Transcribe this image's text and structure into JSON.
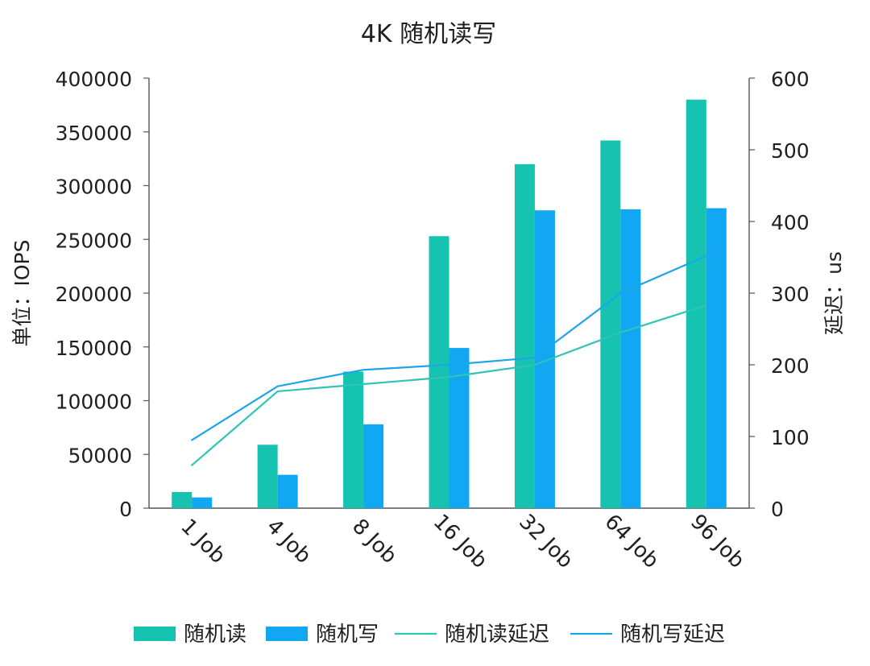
{
  "chart_data": {
    "type": "bar",
    "title": "4K 随机读写",
    "categories": [
      "1 Job",
      "4 Job",
      "8 Job",
      "16 Job",
      "32 Job",
      "64 Job",
      "96 Job"
    ],
    "ylabel": "单位：IOPS",
    "ylabel2": "延迟：us",
    "ylim": [
      0,
      400000
    ],
    "y2lim": [
      0,
      600
    ],
    "yticks": [
      "0",
      "50000",
      "100000",
      "150000",
      "200000",
      "250000",
      "300000",
      "350000",
      "400000"
    ],
    "y2ticks": [
      "0",
      "100",
      "200",
      "300",
      "400",
      "500",
      "600"
    ],
    "legend_position": "bottom",
    "series": [
      {
        "name": "随机读",
        "type": "bar",
        "axis": "left",
        "color": "#15c3b0",
        "values": [
          15000,
          59000,
          127000,
          253000,
          320000,
          342000,
          380000
        ]
      },
      {
        "name": "随机写",
        "type": "bar",
        "axis": "left",
        "color": "#12a7f2",
        "values": [
          10000,
          31000,
          78000,
          149000,
          277000,
          278000,
          279000
        ]
      },
      {
        "name": "随机读延迟",
        "type": "line",
        "axis": "right",
        "color": "#2ec4b6",
        "values": [
          60,
          163,
          173,
          183,
          200,
          245,
          283
        ]
      },
      {
        "name": "随机写延迟",
        "type": "line",
        "axis": "right",
        "color": "#1da6e7",
        "values": [
          95,
          170,
          193,
          200,
          210,
          300,
          352
        ]
      }
    ]
  }
}
